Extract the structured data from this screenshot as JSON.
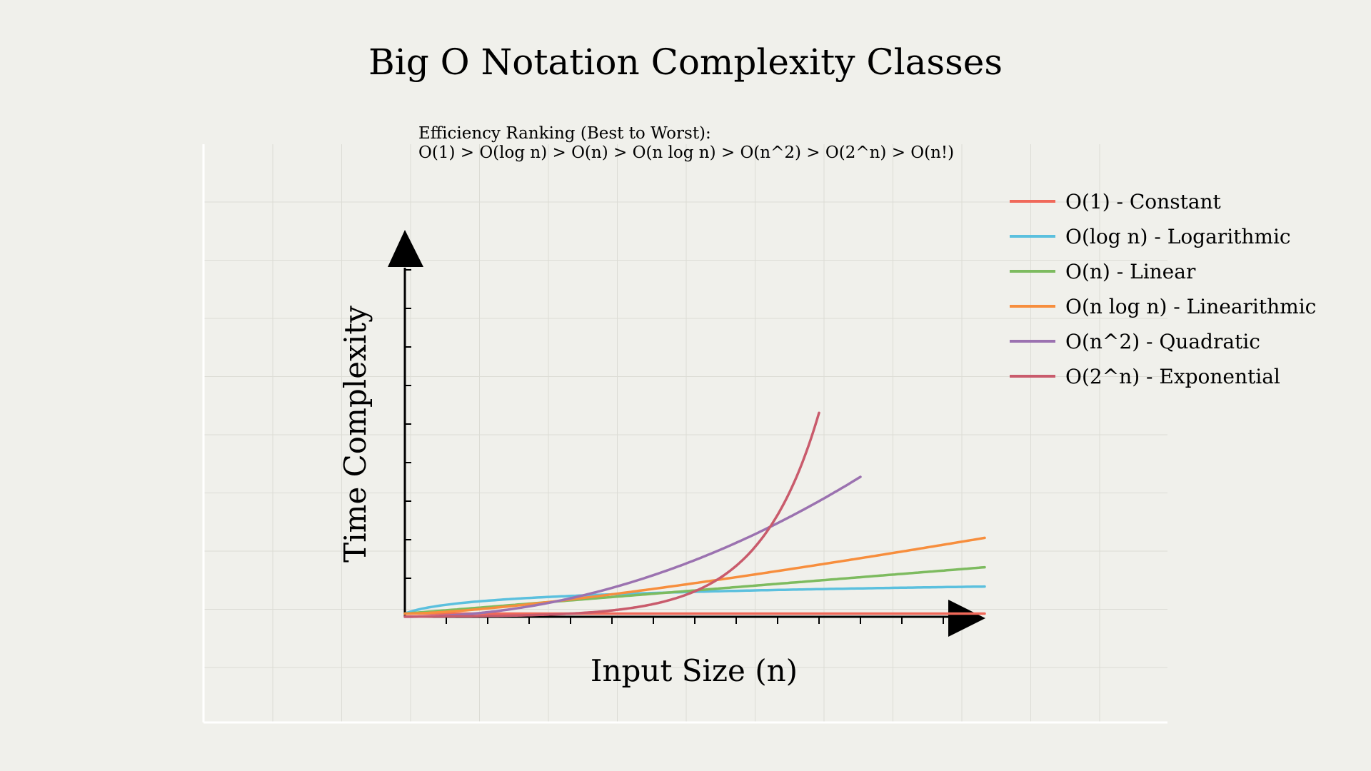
{
  "chart_data": {
    "type": "line",
    "title": "Big O Notation Complexity Classes",
    "xlabel": "Input Size (n)",
    "ylabel": "Time Complexity",
    "annotation": {
      "line1": "Efficiency Ranking (Best to Worst):",
      "line2": "O(1) > O(log n) > O(n) > O(n log n) > O(n^2) > O(2^n) > O(n!)"
    },
    "xlim": [
      0,
      14
    ],
    "ylim": [
      0,
      120
    ],
    "grid": true,
    "legend_position": "top-right",
    "series": [
      {
        "name": "O(1) - Constant",
        "kind": "constant",
        "color": "#f0695a",
        "x_max": 14
      },
      {
        "name": "O(log n) - Logarithmic",
        "kind": "log",
        "color": "#5bc0de",
        "x_max": 14
      },
      {
        "name": "O(n) - Linear",
        "kind": "linear",
        "color": "#7dbb5f",
        "x_max": 14
      },
      {
        "name": "O(n log n) - Linearithmic",
        "kind": "nlogn",
        "color": "#f78e3d",
        "x_max": 14
      },
      {
        "name": "O(n^2) - Quadratic",
        "kind": "quadratic",
        "color": "#9b72b0",
        "x_max": 11
      },
      {
        "name": "O(2^n) - Exponential",
        "kind": "exponential",
        "color": "#c95b6c",
        "x_max": 10
      }
    ]
  }
}
